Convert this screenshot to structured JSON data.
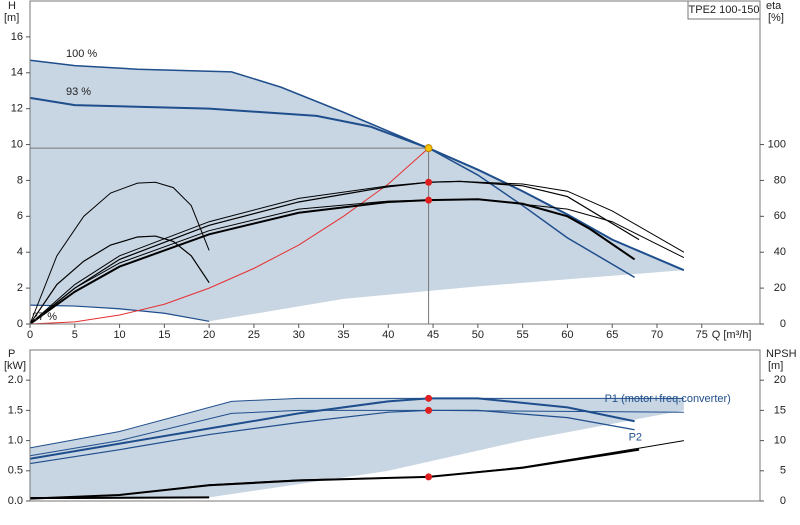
{
  "chart_data": [
    {
      "type": "line",
      "title": "TPE2 100-150",
      "y_label": "H",
      "y_unit": "[m]",
      "y2_label": "eta",
      "y2_unit": "[%]",
      "x_label": "Q [m³/h]",
      "xlim": [
        0,
        81.5
      ],
      "xticks": [
        0,
        5,
        10,
        15,
        20,
        25,
        30,
        35,
        40,
        45,
        50,
        55,
        60,
        65,
        70,
        75
      ],
      "ylim": [
        0,
        18
      ],
      "yticks": [
        0,
        2,
        4,
        6,
        8,
        10,
        12,
        14,
        16
      ],
      "y2lim": [
        0,
        180
      ],
      "y2ticks": [
        0,
        20,
        40,
        60,
        80,
        100
      ],
      "series_label": "start",
      "series": [
        {
          "style": "area",
          "color": "#c8d5e3",
          "x": [
            0,
            5,
            12,
            22.5,
            28,
            35,
            44.5,
            50,
            55,
            60,
            65,
            73,
            50,
            35,
            20,
            15,
            5,
            0
          ],
          "values": [
            14.7,
            14.4,
            14.2,
            14.05,
            13.2,
            11.8,
            9.8,
            8.6,
            7.4,
            6.1,
            4.7,
            3.0,
            2.1,
            1.4,
            0.15,
            0.6,
            1.0,
            1.05
          ]
        },
        {
          "name": "100 %",
          "color": "#1f4e8c",
          "width": 1.5,
          "x": [
            0,
            5,
            12,
            22.5,
            28,
            35,
            44.5,
            50,
            55,
            60,
            67.5
          ],
          "values": [
            14.7,
            14.4,
            14.2,
            14.05,
            13.2,
            11.8,
            9.8,
            8.3,
            6.6,
            4.8,
            2.6
          ]
        },
        {
          "name": "93 %",
          "color": "#1f4e8c",
          "width": 2,
          "x": [
            0,
            5,
            20,
            32,
            38,
            44.5,
            50,
            55,
            60,
            65,
            73
          ],
          "values": [
            12.6,
            12.2,
            12.0,
            11.6,
            11.0,
            9.8,
            8.6,
            7.4,
            6.1,
            4.7,
            3.0
          ]
        },
        {
          "name": "27 %",
          "color": "#1f4e8c",
          "width": 1.2,
          "x": [
            0,
            5,
            10,
            15,
            20
          ],
          "values": [
            1.05,
            1.0,
            0.85,
            0.6,
            0.15
          ]
        },
        {
          "color": "#e53030",
          "width": 1,
          "x": [
            0,
            5,
            10,
            15,
            20,
            25,
            30,
            35,
            40,
            44.5
          ],
          "values": [
            0,
            0.12,
            0.5,
            1.1,
            2.0,
            3.1,
            4.4,
            6.0,
            7.8,
            9.8
          ]
        },
        {
          "axis": "y2",
          "color": "#000000",
          "width": 1,
          "x": [
            0,
            3,
            6,
            9,
            12,
            14,
            16,
            18,
            20
          ],
          "values": [
            0,
            38,
            60,
            73,
            78.5,
            79,
            76,
            66,
            41
          ]
        },
        {
          "axis": "y2",
          "color": "#000000",
          "width": 1.2,
          "x": [
            0,
            3,
            6,
            9,
            12,
            14,
            16,
            18,
            20
          ],
          "values": [
            0,
            22,
            35,
            44,
            48.5,
            49,
            46,
            38,
            23
          ]
        },
        {
          "axis": "y2",
          "color": "#000000",
          "width": 1,
          "x": [
            0,
            5,
            10,
            20,
            30,
            40,
            44.5,
            48,
            55,
            60,
            65,
            73
          ],
          "values": [
            0,
            22,
            38,
            57,
            70,
            77,
            79,
            79.5,
            78,
            74,
            63,
            40
          ]
        },
        {
          "axis": "y2",
          "color": "#000000",
          "width": 1.2,
          "x": [
            0,
            5,
            10,
            20,
            30,
            40,
            44.5,
            48,
            55,
            60,
            65,
            68
          ],
          "values": [
            0,
            20,
            36,
            55,
            68,
            76.5,
            79,
            79.5,
            77,
            71,
            56,
            47
          ]
        },
        {
          "axis": "y2",
          "color": "#000000",
          "width": 2,
          "x": [
            0,
            5,
            10,
            20,
            30,
            40,
            44.5,
            50,
            55,
            60,
            62.5,
            67.5
          ],
          "values": [
            0,
            18,
            32,
            50,
            62,
            68,
            69,
            69.5,
            67,
            60,
            53,
            36
          ]
        },
        {
          "axis": "y2",
          "color": "#000000",
          "width": 1,
          "x": [
            0,
            5,
            10,
            20,
            30,
            40,
            44.5,
            50,
            60,
            65,
            73
          ],
          "values": [
            0,
            20,
            34,
            52,
            64,
            68.5,
            69,
            69.5,
            64,
            57,
            37
          ]
        },
        {
          "style": "points",
          "guides": true,
          "color": "#f5c400",
          "x": [
            44.5
          ],
          "values": [
            9.8
          ]
        },
        {
          "style": "points",
          "axis": "y2",
          "color": "#e02020",
          "x": [
            44.5,
            44.5
          ],
          "values": [
            79,
            69
          ]
        }
      ]
    },
    {
      "type": "line",
      "y_label": "P",
      "y_unit": "[kW]",
      "y2_label": "NPSH",
      "y2_unit": "[m]",
      "xlim": [
        0,
        81.5
      ],
      "ylim": [
        0,
        2.5
      ],
      "yticks": [
        {
          "value": 0,
          "label": "0.0"
        },
        0.5,
        {
          "value": 1,
          "label": "1.0"
        },
        1.5,
        {
          "value": 2,
          "label": "2.0"
        }
      ],
      "y2lim": [
        0,
        25
      ],
      "y2ticks": [
        0,
        5,
        10,
        15,
        20
      ],
      "series_label": "end",
      "series": [
        {
          "style": "area",
          "color": "#c8d5e3",
          "x": [
            0,
            10,
            22.5,
            30,
            73,
            73,
            55,
            40,
            20,
            0
          ],
          "values": [
            0.88,
            1.15,
            1.65,
            1.7,
            1.7,
            1.5,
            1.0,
            0.5,
            0.06,
            0.06
          ]
        },
        {
          "color": "#1f4e8c",
          "width": 1,
          "x": [
            0,
            10,
            22.5,
            30,
            44.5,
            73
          ],
          "values": [
            0.88,
            1.15,
            1.65,
            1.7,
            1.7,
            1.7
          ]
        },
        {
          "name": "P1 (motor+freq.converter)",
          "color": "#1f4e8c",
          "width": 2,
          "x": [
            0,
            10,
            20,
            30,
            40,
            44.5,
            50,
            60,
            67.5
          ],
          "values": [
            0.7,
            0.95,
            1.2,
            1.45,
            1.65,
            1.7,
            1.7,
            1.55,
            1.32
          ]
        },
        {
          "name": "P2",
          "color": "#1f4e8c",
          "width": 1.2,
          "x": [
            0,
            10,
            20,
            30,
            40,
            44.5,
            50,
            60,
            67.5
          ],
          "values": [
            0.62,
            0.85,
            1.1,
            1.3,
            1.47,
            1.5,
            1.5,
            1.38,
            1.18
          ]
        },
        {
          "color": "#1f4e8c",
          "width": 1,
          "x": [
            0,
            10,
            22.5,
            30,
            44.5,
            73
          ],
          "values": [
            0.75,
            1.0,
            1.45,
            1.5,
            1.5,
            1.47
          ]
        },
        {
          "color": "#000000",
          "width": 2,
          "x": [
            0,
            5,
            20,
            20
          ],
          "values": [
            0.05,
            0.05,
            0.06,
            0.06
          ]
        },
        {
          "axis": "y2",
          "color": "#000000",
          "width": 2,
          "x": [
            0,
            10,
            20,
            30,
            44.5,
            55,
            65,
            68
          ],
          "values": [
            0.4,
            1.0,
            2.6,
            3.4,
            4.0,
            5.5,
            7.8,
            8.5
          ]
        },
        {
          "axis": "y2",
          "color": "#000000",
          "width": 1,
          "x": [
            0,
            10,
            20,
            30,
            44.5,
            55,
            65,
            73
          ],
          "values": [
            0.4,
            1.0,
            2.7,
            3.5,
            4.0,
            5.6,
            8.0,
            10.0
          ]
        },
        {
          "style": "points",
          "color": "#e02020",
          "x": [
            44.5,
            44.5
          ],
          "values": [
            1.7,
            1.5
          ]
        },
        {
          "style": "points",
          "axis": "y2",
          "color": "#e02020",
          "x": [
            44.5
          ],
          "values": [
            4.0
          ]
        }
      ]
    }
  ]
}
